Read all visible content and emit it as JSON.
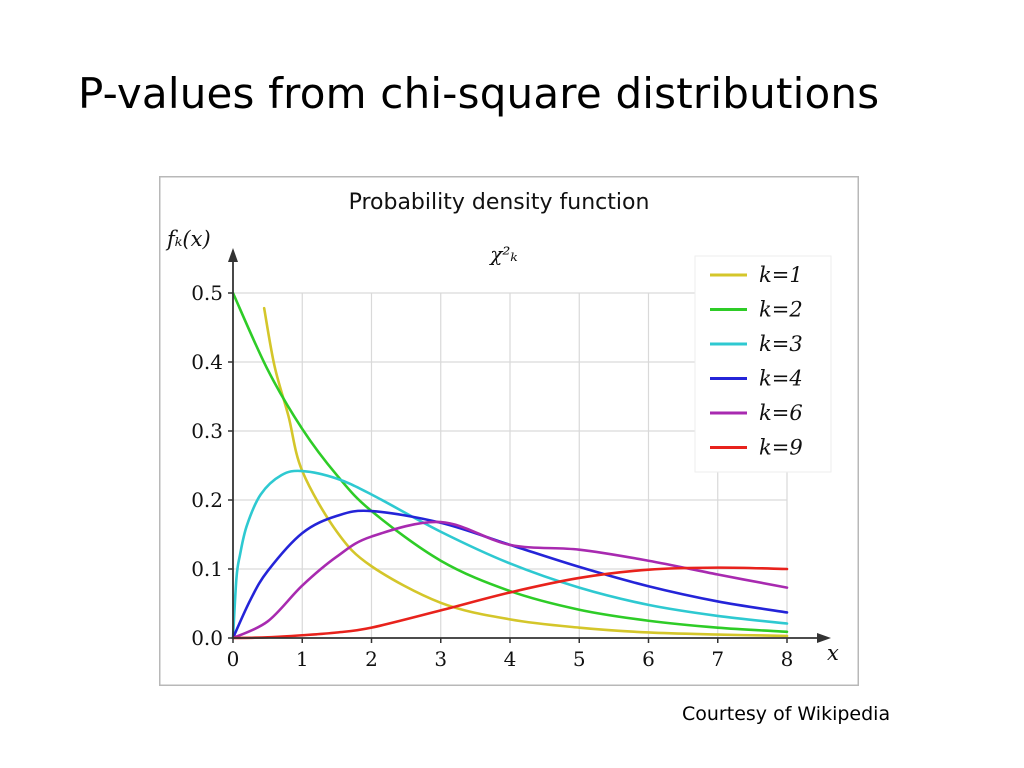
{
  "slide": {
    "title": "P-values from chi-square distributions",
    "credit": "Courtesy of Wikipedia"
  },
  "chart_data": {
    "type": "line",
    "title": "Probability density function",
    "subtitle": "χ²ₖ",
    "xlabel": "x",
    "ylabel": "fₖ(x)",
    "xlim": [
      0,
      8
    ],
    "ylim": [
      0,
      0.5
    ],
    "x_ticks": [
      "0",
      "1",
      "2",
      "3",
      "4",
      "5",
      "6",
      "7",
      "8"
    ],
    "y_ticks": [
      "0.0",
      "0.1",
      "0.2",
      "0.3",
      "0.4",
      "0.5"
    ],
    "grid": true,
    "legend_position": "top-right",
    "series": [
      {
        "name": "k=1",
        "k": 1,
        "color": "#d4c62a",
        "x": [
          0.45,
          0.6,
          0.8,
          1,
          1.5,
          2,
          3,
          4,
          5,
          6,
          7,
          8
        ],
        "y": [
          0.478,
          0.394,
          0.322,
          0.242,
          0.154,
          0.104,
          0.051,
          0.027,
          0.015,
          0.008,
          0.005,
          0.003
        ]
      },
      {
        "name": "k=2",
        "k": 2,
        "color": "#2ecc27",
        "x": [
          0,
          0.5,
          1,
          1.5,
          2,
          3,
          4,
          5,
          6,
          7,
          8
        ],
        "y": [
          0.5,
          0.389,
          0.303,
          0.236,
          0.184,
          0.112,
          0.068,
          0.041,
          0.025,
          0.015,
          0.009
        ]
      },
      {
        "name": "k=3",
        "k": 3,
        "color": "#2ec9d1",
        "x": [
          0,
          0.05,
          0.1,
          0.2,
          0.4,
          0.7,
          1,
          1.5,
          2,
          3,
          4,
          5,
          6,
          7,
          8
        ],
        "y": [
          0,
          0.087,
          0.12,
          0.163,
          0.208,
          0.236,
          0.242,
          0.231,
          0.208,
          0.154,
          0.108,
          0.073,
          0.048,
          0.032,
          0.021
        ]
      },
      {
        "name": "k=4",
        "k": 4,
        "color": "#2424d8",
        "x": [
          0,
          0.25,
          0.5,
          1,
          1.5,
          2,
          3,
          4,
          5,
          6,
          7,
          8
        ],
        "y": [
          0,
          0.055,
          0.097,
          0.152,
          0.177,
          0.184,
          0.167,
          0.135,
          0.103,
          0.075,
          0.053,
          0.037
        ]
      },
      {
        "name": "k=6",
        "k": 6,
        "color": "#a82ab0",
        "x": [
          0,
          0.5,
          1,
          1.5,
          2,
          3,
          4,
          5,
          6,
          7,
          8
        ],
        "y": [
          0,
          0.024,
          0.076,
          0.118,
          0.147,
          0.168,
          0.135,
          0.128,
          0.112,
          0.092,
          0.073
        ]
      },
      {
        "name": "k=9",
        "k": 9,
        "color": "#e8221c",
        "x": [
          0,
          0.5,
          1,
          1.5,
          2,
          3,
          4,
          5,
          6,
          7,
          8
        ],
        "y": [
          0,
          0.001,
          0.004,
          0.008,
          0.015,
          0.04,
          0.066,
          0.087,
          0.099,
          0.102,
          0.1
        ]
      }
    ]
  }
}
